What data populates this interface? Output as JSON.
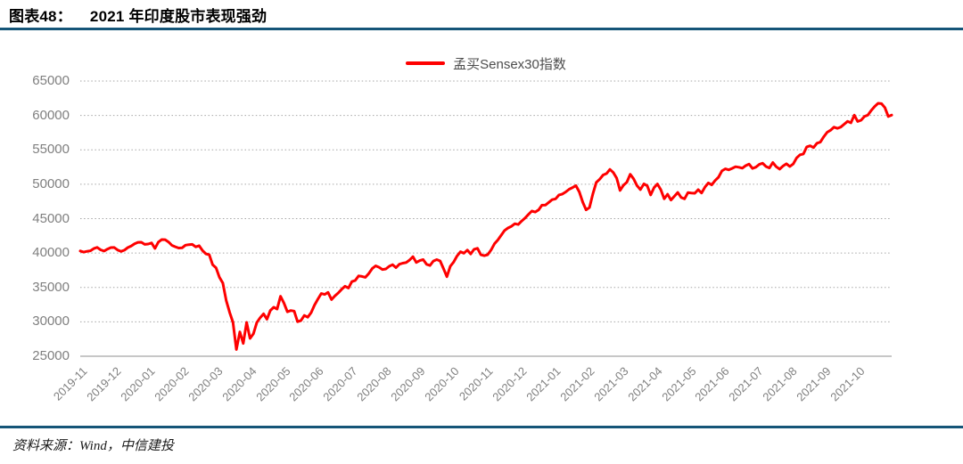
{
  "figure": {
    "caption_label": "图表48：",
    "caption_text": "2021 年印度股市表现强劲",
    "source": "资料来源：Wind，中信建投"
  },
  "colors": {
    "divider": "#155578",
    "series": "#FE0000",
    "gridline": "#A6A6A6",
    "axis_line": "#BFBFBF",
    "tick_label": "#7F7F7F",
    "legend_text": "#4D4D4D"
  },
  "chart_data": {
    "type": "line",
    "title": "2021 年印度股市表现强劲",
    "legend_position": "top-center",
    "grid": "horizontal-dotted",
    "ylim": [
      25000,
      65000
    ],
    "yticks": [
      25000,
      30000,
      35000,
      40000,
      45000,
      50000,
      55000,
      60000,
      65000
    ],
    "xticks": [
      "2019-11",
      "2019-12",
      "2020-01",
      "2020-02",
      "2020-03",
      "2020-04",
      "2020-05",
      "2020-06",
      "2020-07",
      "2020-08",
      "2020-09",
      "2020-10",
      "2020-11",
      "2020-12",
      "2021-01",
      "2021-02",
      "2021-03",
      "2021-04",
      "2021-05",
      "2021-06",
      "2021-07",
      "2021-08",
      "2021-09",
      "2021-10"
    ],
    "series": [
      {
        "name": "孟买Sensex30指数",
        "color": "#FE0000",
        "values": [
          40302,
          40129,
          40248,
          40324,
          40653,
          40816,
          40469,
          40286,
          40575,
          40794,
          40802,
          40445,
          40240,
          40412,
          40793,
          41009,
          41352,
          41558,
          41575,
          41254,
          41307,
          41465,
          40676,
          41600,
          41953,
          41945,
          41613,
          41115,
          40913,
          40723,
          40754,
          41142,
          41216,
          41258,
          40894,
          41059,
          40363,
          39889,
          39745,
          38297,
          37850,
          36470,
          35635,
          33103,
          31390,
          29916,
          25981,
          28536,
          26870,
          29915,
          27591,
          28265,
          29894,
          30602,
          31160,
          30380,
          31648,
          32115,
          31863,
          33717,
          32721,
          31454,
          31643,
          31562,
          30029,
          30197,
          30933,
          30673,
          31324,
          32424,
          33304,
          34110,
          33981,
          34287,
          33229,
          33780,
          34208,
          34731,
          35171,
          34916,
          35843,
          36021,
          36674,
          36594,
          36471,
          37020,
          37740,
          38140,
          37935,
          37607,
          37687,
          38073,
          38310,
          37877,
          38370,
          38528,
          38614,
          38986,
          39467,
          38628,
          38901,
          39044,
          38365,
          38194,
          38840,
          39044,
          38846,
          37734,
          36554,
          38068,
          38697,
          39574,
          40183,
          39983,
          40431,
          39878,
          40544,
          40686,
          39749,
          39614,
          39757,
          40433,
          41340,
          41893,
          42597,
          43277,
          43637,
          43882,
          44259,
          44150,
          44655,
          45080,
          45609,
          46099,
          45960,
          46263,
          46960,
          46974,
          47354,
          47751,
          47869,
          48437,
          48569,
          48878,
          49269,
          49517,
          49792,
          48878,
          47410,
          46286,
          46617,
          48601,
          50256,
          50732,
          51349,
          51544,
          52154,
          51704,
          50890,
          49100,
          49850,
          50296,
          51444,
          50792,
          49802,
          49216,
          50051,
          49771,
          48440,
          49509,
          50030,
          49201,
          47883,
          48544,
          47706,
          48253,
          48803,
          48081,
          47878,
          48782,
          48718,
          48691,
          49206,
          48732,
          49580,
          50193,
          49902,
          50540,
          51017,
          51937,
          52234,
          52100,
          52300,
          52550,
          52474,
          52344,
          52699,
          52925,
          52300,
          52482,
          52880,
          53055,
          52569,
          52372,
          53159,
          52553,
          52199,
          52653,
          52975,
          52587,
          52951,
          53823,
          54278,
          54403,
          55437,
          55583,
          55329,
          55959,
          56124,
          56890,
          57553,
          57852,
          58297,
          58129,
          58306,
          58723,
          59141,
          58927,
          60048,
          59126,
          59306,
          59845,
          60060,
          60736,
          61306,
          61766,
          61716,
          61144,
          59850,
          60050
        ]
      }
    ]
  }
}
